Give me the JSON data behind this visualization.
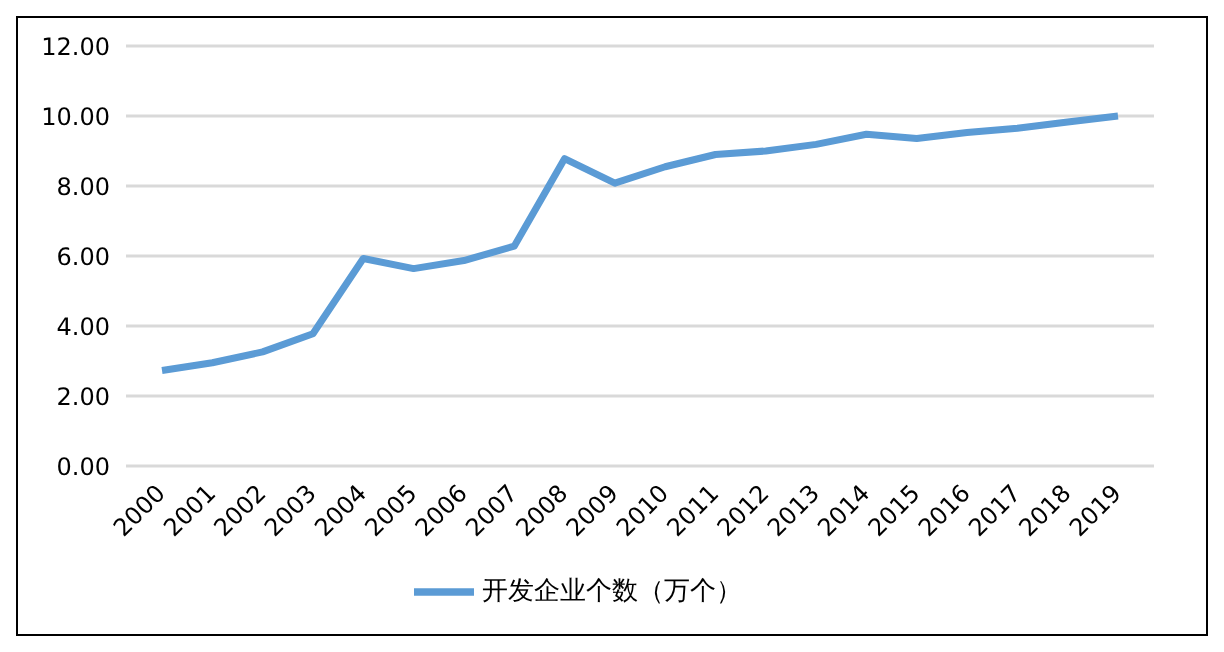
{
  "chart_data": {
    "type": "line",
    "categories": [
      "2000",
      "2001",
      "2002",
      "2003",
      "2004",
      "2005",
      "2006",
      "2007",
      "2008",
      "2009",
      "2010",
      "2011",
      "2012",
      "2013",
      "2014",
      "2015",
      "2016",
      "2017",
      "2018",
      "2019"
    ],
    "series": [
      {
        "name": "开发企业个数（万个）",
        "color": "#5b9bd5",
        "values": [
          2.73,
          2.95,
          3.26,
          3.78,
          5.93,
          5.64,
          5.87,
          6.28,
          8.78,
          8.08,
          8.55,
          8.9,
          9.0,
          9.19,
          9.48,
          9.36,
          9.53,
          9.65,
          9.83,
          10.0
        ]
      }
    ],
    "ylim": [
      0,
      12
    ],
    "yticks": [
      {
        "value": 0,
        "label": "0.00"
      },
      {
        "value": 2,
        "label": "2.00"
      },
      {
        "value": 4,
        "label": "4.00"
      },
      {
        "value": 6,
        "label": "6.00"
      },
      {
        "value": 8,
        "label": "8.00"
      },
      {
        "value": 10,
        "label": "10.00"
      },
      {
        "value": 12,
        "label": "12.00"
      }
    ],
    "grid": "y",
    "legend": "bottom",
    "marker": "none",
    "line_style": "solid"
  }
}
